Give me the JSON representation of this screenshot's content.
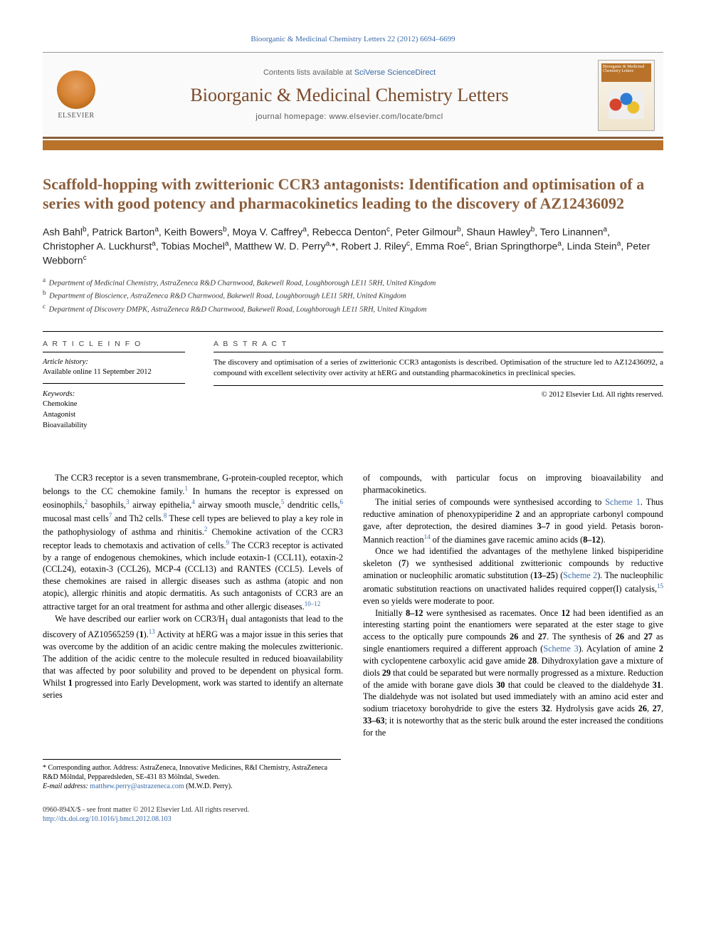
{
  "citation": "Bioorganic & Medicinal Chemistry Letters 22 (2012) 6694–6699",
  "header": {
    "contents_prefix": "Contents lists available at ",
    "contents_link": "SciVerse ScienceDirect",
    "journal_title": "Bioorganic & Medicinal Chemistry Letters",
    "homepage_prefix": "journal homepage: ",
    "homepage_url": "www.elsevier.com/locate/bmcl",
    "publisher_label": "ELSEVIER",
    "cover_text": "Bioorganic & Medicinal Chemistry Letters"
  },
  "title": "Scaffold-hopping with zwitterionic CCR3 antagonists: Identification and optimisation of a series with good potency and pharmacokinetics leading to the discovery of AZ12436092",
  "authors_html": "Ash Bahl<sup>b</sup>, Patrick Barton<sup>a</sup>, Keith Bowers<sup>b</sup>, Moya V. Caffrey<sup>a</sup>, Rebecca Denton<sup>c</sup>, Peter Gilmour<sup>b</sup>, Shaun Hawley<sup>b</sup>, Tero Linannen<sup>a</sup>, Christopher A. Luckhurst<sup>a</sup>, Tobias Mochel<sup>a</sup>, Matthew W. D. Perry<sup>a,</sup><span class=\"star\">*</span>, Robert J. Riley<sup>c</sup>, Emma Roe<sup>c</sup>, Brian Springthorpe<sup>a</sup>, Linda Stein<sup>a</sup>, Peter Webborn<sup>c</sup>",
  "affiliations": [
    {
      "sup": "a",
      "text": "Department of Medicinal Chemistry, AstraZeneca R&D Charnwood, Bakewell Road, Loughborough LE11 5RH, United Kingdom"
    },
    {
      "sup": "b",
      "text": "Department of Bioscience, AstraZeneca R&D Charnwood, Bakewell Road, Loughborough LE11 5RH, United Kingdom"
    },
    {
      "sup": "c",
      "text": "Department of Discovery DMPK, AstraZeneca R&D Charnwood, Bakewell Road, Loughborough LE11 5RH, United Kingdom"
    }
  ],
  "article_info": {
    "heading": "A R T I C L E   I N F O",
    "history_label": "Article history:",
    "history_text": "Available online 11 September 2012",
    "keywords_label": "Keywords:",
    "keywords": [
      "Chemokine",
      "Antagonist",
      "Bioavailability"
    ]
  },
  "abstract": {
    "heading": "A B S T R A C T",
    "text": "The discovery and optimisation of a series of zwitterionic CCR3 antagonists is described. Optimisation of the structure led to AZ12436092, a compound with excellent selectivity over activity at hERG and outstanding pharmacokinetics in preclinical species.",
    "copyright": "© 2012 Elsevier Ltd. All rights reserved."
  },
  "body": {
    "col1": [
      "The CCR3 receptor is a seven transmembrane, G-protein-coupled receptor, which belongs to the CC chemokine family.<sup>1</sup> In humans the receptor is expressed on eosinophils,<sup>2</sup> basophils,<sup>3</sup> airway epithelia,<sup>4</sup> airway smooth muscle,<sup>5</sup> dendritic cells,<sup>6</sup> mucosal mast cells<sup>7</sup> and Th2 cells.<sup>8</sup> These cell types are believed to play a key role in the pathophysiology of asthma and rhinitis.<sup>2</sup> Chemokine activation of the CCR3 receptor leads to chemotaxis and activation of cells.<sup>9</sup> The CCR3 receptor is activated by a range of endogenous chemokines, which include eotaxin-1 (CCL11), eotaxin-2 (CCL24), eotaxin-3 (CCL26), MCP-4 (CCL13) and RANTES (CCL5). Levels of these chemokines are raised in allergic diseases such as asthma (atopic and non atopic), allergic rhinitis and atopic dermatitis. As such antagonists of CCR3 are an attractive target for an oral treatment for asthma and other allergic diseases.<sup>10–12</sup>",
      "We have described our earlier work on CCR3/H<sub>1</sub> dual antagonists that lead to the discovery of AZ10565259 (<strong class=\"num\">1</strong>).<sup>13</sup> Activity at hERG was a major issue in this series that was overcome by the addition of an acidic centre making the molecules zwitterionic. The addition of the acidic centre to the molecule resulted in reduced bioavailability that was affected by poor solubility and proved to be dependent on physical form. Whilst <strong class=\"num\">1</strong> progressed into Early Development, work was started to identify an alternate series"
    ],
    "col2": [
      "of compounds, with particular focus on improving bioavailability and pharmacokinetics.",
      "The initial series of compounds were synthesised according to <span class=\"ref-inline\">Scheme 1</span>. Thus reductive amination of phenoxypiperidine <strong class=\"num\">2</strong> and an appropriate carbonyl compound gave, after deprotection, the desired diamines <strong class=\"num\">3–7</strong> in good yield. Petasis boron-Mannich reaction<sup>14</sup> of the diamines gave racemic amino acids (<strong class=\"num\">8–12</strong>).",
      "Once we had identified the advantages of the methylene linked bispiperidine skeleton (<strong class=\"num\">7</strong>) we synthesised additional zwitterionic compounds by reductive amination or nucleophilic aromatic substitution (<strong class=\"num\">13–25</strong>) (<span class=\"ref-inline\">Scheme 2</span>). The nucleophilic aromatic substitution reactions on unactivated halides required copper(I) catalysis,<sup>15</sup> even so yields were moderate to poor.",
      "Initially <strong class=\"num\">8–12</strong> were synthesised as racemates. Once <strong class=\"num\">12</strong> had been identified as an interesting starting point the enantiomers were separated at the ester stage to give access to the optically pure compounds <strong class=\"num\">26</strong> and <strong class=\"num\">27</strong>. The synthesis of <strong class=\"num\">26</strong> and <strong class=\"num\">27</strong> as single enantiomers required a different approach (<span class=\"ref-inline\">Scheme 3</span>). Acylation of amine <strong class=\"num\">2</strong> with cyclopentene carboxylic acid gave amide <strong class=\"num\">28</strong>. Dihydroxylation gave a mixture of diols <strong class=\"num\">29</strong> that could be separated but were normally progressed as a mixture. Reduction of the amide with borane gave diols <strong class=\"num\">30</strong> that could be cleaved to the dialdehyde <strong class=\"num\">31</strong>. The dialdehyde was not isolated but used immediately with an amino acid ester and sodium triacetoxy borohydride to give the esters <strong class=\"num\">32</strong>. Hydrolysis gave acids <strong class=\"num\">26</strong>, <strong class=\"num\">27</strong>, <strong class=\"num\">33–63</strong>; it is noteworthy that as the steric bulk around the ester increased the conditions for the"
    ]
  },
  "footnote": {
    "star": "*",
    "label": " Corresponding author. Address: AstraZeneca, Innovative Medicines, R&I Chemistry, AstraZeneca R&D Mölndal, Pepparedsleden, SE-431 83 Mölndal, Sweden.",
    "email_label": "E-mail address: ",
    "email": "matthew.perry@astrazeneca.com",
    "email_suffix": " (M.W.D. Perry)."
  },
  "bottom": {
    "line1": "0960-894X/$ - see front matter © 2012 Elsevier Ltd. All rights reserved.",
    "doi": "http://dx.doi.org/10.1016/j.bmcl.2012.08.103"
  },
  "colors": {
    "accent": "#b8722a",
    "title": "#8b5e3c",
    "link": "#3a6aa8",
    "rule": "#000000"
  }
}
